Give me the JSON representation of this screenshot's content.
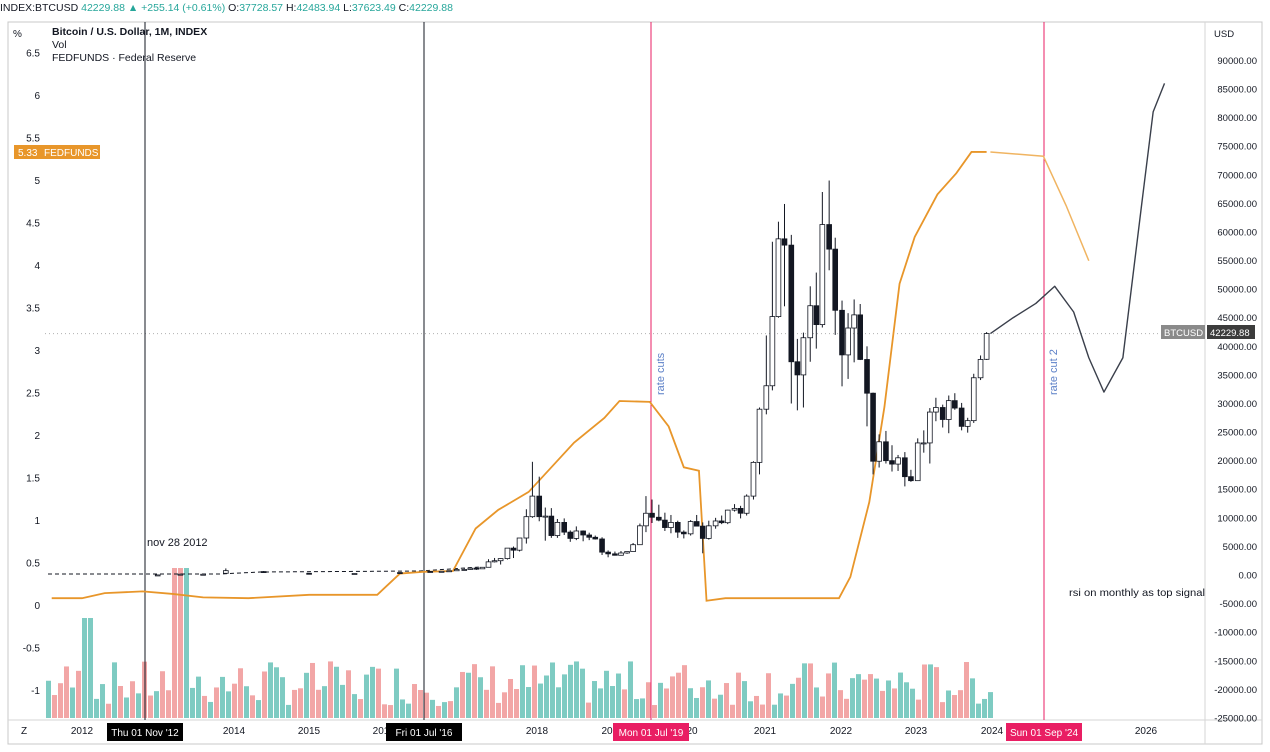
{
  "header": {
    "symbol": "INDEX:BTCUSD",
    "last": "42229.88",
    "change": "▲ +255.14 (+0.61%)",
    "open_label": "O:",
    "open": "37728.57",
    "high_label": "H:",
    "high": "42483.94",
    "low_label": "L:",
    "low": "37623.49",
    "close_label": "C:",
    "close": "42229.88"
  },
  "legend": {
    "title": "Bitcoin / U.S. Dollar, 1M, INDEX",
    "line2": "Vol",
    "line3": "FEDFUNDS · Federal Reserve"
  },
  "colors": {
    "up": "#26a69a",
    "down": "#ef5350",
    "fedfunds": "#e8962a",
    "marker": "#e91e63",
    "volume_up": "#7ecbc2",
    "volume_down": "#f2a6a6"
  },
  "chart_data": {
    "type": "candlestick",
    "left_axis": {
      "unit_label": "%",
      "ticks": [
        "6.5",
        "6",
        "5.5",
        "5",
        "4.5",
        "4",
        "3.5",
        "3",
        "2.5",
        "2",
        "1.5",
        "1",
        "0.5",
        "0",
        "-0.5",
        "-1"
      ]
    },
    "right_axis": {
      "unit_label": "USD",
      "ticks": [
        "90000.00",
        "85000.00",
        "80000.00",
        "75000.00",
        "70000.00",
        "65000.00",
        "60000.00",
        "55000.00",
        "50000.00",
        "45000.00",
        "40000.00",
        "35000.00",
        "30000.00",
        "25000.00",
        "20000.00",
        "15000.00",
        "10000.00",
        "5000.00",
        "0.00",
        "-5000.00",
        "-10000.00",
        "-15000.00",
        "-20000.00",
        "-25000.00"
      ]
    },
    "x_axis": {
      "ticks": [
        "2012",
        "2014",
        "2015",
        "201",
        "2018",
        "20",
        "20",
        "2021",
        "2022",
        "2023",
        "2024",
        "2026"
      ],
      "corner_label": "Z"
    },
    "fedfunds_badge": {
      "value": "5.33",
      "name": "FEDFUNDS"
    },
    "btc_badge": {
      "name": "BTCUSD",
      "value": "42229.88"
    },
    "btc_price_line": 42229.88,
    "vertical_markers": [
      {
        "label": "Thu 01 Nov '12",
        "style": "black"
      },
      {
        "label": "Fri 01 Jul '16",
        "style": "black"
      },
      {
        "label": "Mon 01 Jul '19",
        "style": "pink"
      },
      {
        "label": "Sun 01 Sep '24",
        "style": "pink"
      }
    ],
    "annotations": [
      {
        "text": "nov 28 2012"
      },
      {
        "text": "rate cuts"
      },
      {
        "text": "rate cut 2"
      },
      {
        "text": "rsi on monthly as top signal"
      }
    ],
    "fedfunds_series": [
      [
        2011.6,
        0.08
      ],
      [
        2012.0,
        0.08
      ],
      [
        2012.3,
        0.14
      ],
      [
        2012.8,
        0.16
      ],
      [
        2013.2,
        0.13
      ],
      [
        2013.6,
        0.09
      ],
      [
        2014.2,
        0.08
      ],
      [
        2015.0,
        0.12
      ],
      [
        2015.9,
        0.12
      ],
      [
        2016.2,
        0.37
      ],
      [
        2016.5,
        0.39
      ],
      [
        2016.9,
        0.4
      ],
      [
        2017.2,
        0.9
      ],
      [
        2017.5,
        1.12
      ],
      [
        2017.9,
        1.33
      ],
      [
        2018.2,
        1.62
      ],
      [
        2018.5,
        1.91
      ],
      [
        2018.9,
        2.2
      ],
      [
        2019.1,
        2.4
      ],
      [
        2019.5,
        2.39
      ],
      [
        2019.75,
        2.1
      ],
      [
        2019.95,
        1.62
      ],
      [
        2020.15,
        1.58
      ],
      [
        2020.25,
        0.05
      ],
      [
        2020.5,
        0.08
      ],
      [
        2021.0,
        0.08
      ],
      [
        2021.5,
        0.08
      ],
      [
        2022.0,
        0.08
      ],
      [
        2022.15,
        0.33
      ],
      [
        2022.4,
        1.21
      ],
      [
        2022.6,
        2.33
      ],
      [
        2022.8,
        3.78
      ],
      [
        2023.0,
        4.33
      ],
      [
        2023.3,
        4.83
      ],
      [
        2023.55,
        5.08
      ],
      [
        2023.75,
        5.33
      ],
      [
        2023.95,
        5.33
      ]
    ],
    "fedfunds_projection": [
      [
        2024.0,
        5.33
      ],
      [
        2024.7,
        5.28
      ],
      [
        2025.0,
        4.7
      ],
      [
        2025.3,
        4.05
      ]
    ],
    "btc_projection": [
      [
        2024.0,
        42229
      ],
      [
        2024.3,
        45000
      ],
      [
        2024.6,
        47500
      ],
      [
        2024.85,
        50500
      ],
      [
        2025.1,
        46000
      ],
      [
        2025.3,
        38000
      ],
      [
        2025.5,
        32000
      ],
      [
        2025.75,
        38000
      ],
      [
        2026.0,
        65000
      ],
      [
        2026.15,
        81000
      ],
      [
        2026.3,
        86000
      ]
    ],
    "btc_monthly": [
      [
        2013.0,
        13,
        14,
        12,
        13
      ],
      [
        2013.3,
        95,
        230,
        50,
        140
      ],
      [
        2013.6,
        120,
        200,
        70,
        130
      ],
      [
        2013.9,
        300,
        1150,
        300,
        760
      ],
      [
        2014.4,
        600,
        700,
        400,
        460
      ],
      [
        2015.0,
        300,
        350,
        200,
        240
      ],
      [
        2015.6,
        250,
        280,
        230,
        265
      ],
      [
        2016.2,
        430,
        450,
        400,
        420
      ],
      [
        2016.6,
        620,
        700,
        550,
        610
      ],
      [
        2016.75,
        610,
        650,
        600,
        640
      ],
      [
        2016.85,
        640,
        750,
        620,
        740
      ],
      [
        2016.95,
        740,
        970,
        740,
        960
      ],
      [
        2017.05,
        960,
        1180,
        780,
        970
      ],
      [
        2017.13,
        970,
        1230,
        920,
        1190
      ],
      [
        2017.21,
        1190,
        1290,
        890,
        1080
      ],
      [
        2017.29,
        1080,
        1380,
        1080,
        1350
      ],
      [
        2017.37,
        1350,
        2760,
        1350,
        2300
      ],
      [
        2017.45,
        2300,
        2980,
        2200,
        2500
      ],
      [
        2017.53,
        2500,
        2920,
        1830,
        2870
      ],
      [
        2017.62,
        2870,
        4700,
        2700,
        4700
      ],
      [
        2017.7,
        4700,
        4980,
        2970,
        4340
      ],
      [
        2017.78,
        4340,
        6470,
        4120,
        6470
      ],
      [
        2017.87,
        6470,
        11500,
        5500,
        10200
      ],
      [
        2017.95,
        10200,
        19800,
        10000,
        13800
      ],
      [
        2018.04,
        13800,
        17200,
        9400,
        10200
      ],
      [
        2018.12,
        10200,
        11800,
        6000,
        10300
      ],
      [
        2018.2,
        10300,
        11700,
        6500,
        6900
      ],
      [
        2018.28,
        6900,
        9800,
        6500,
        9200
      ],
      [
        2018.37,
        9200,
        9900,
        7000,
        7500
      ],
      [
        2018.45,
        7500,
        7800,
        5800,
        6400
      ],
      [
        2018.53,
        6400,
        8500,
        6100,
        7700
      ],
      [
        2018.62,
        7700,
        7800,
        5900,
        7000
      ],
      [
        2018.7,
        7000,
        7400,
        6100,
        6600
      ],
      [
        2018.78,
        6600,
        6900,
        6200,
        6300
      ],
      [
        2018.87,
        6300,
        6600,
        3500,
        4000
      ],
      [
        2018.95,
        4000,
        4300,
        3100,
        3700
      ],
      [
        2019.04,
        3700,
        4100,
        3400,
        3450
      ],
      [
        2019.12,
        3450,
        4200,
        3400,
        3850
      ],
      [
        2019.2,
        3850,
        4100,
        3700,
        4100
      ],
      [
        2019.28,
        4100,
        5600,
        4100,
        5300
      ],
      [
        2019.37,
        5300,
        9000,
        5300,
        8600
      ],
      [
        2019.45,
        8600,
        13800,
        7500,
        10800
      ],
      [
        2019.53,
        10800,
        13200,
        9100,
        10100
      ],
      [
        2019.62,
        10100,
        12300,
        9400,
        9600
      ],
      [
        2019.7,
        9600,
        10900,
        7700,
        8300
      ],
      [
        2019.78,
        8300,
        10500,
        7300,
        9200
      ],
      [
        2019.87,
        9200,
        9500,
        6500,
        7500
      ],
      [
        2019.95,
        7500,
        7800,
        6400,
        7200
      ],
      [
        2020.04,
        7200,
        9600,
        6900,
        9350
      ],
      [
        2020.12,
        9350,
        10500,
        8500,
        8550
      ],
      [
        2020.2,
        8550,
        9200,
        3800,
        6400
      ],
      [
        2020.28,
        6400,
        9500,
        6200,
        8600
      ],
      [
        2020.37,
        8600,
        10000,
        8100,
        9450
      ],
      [
        2020.45,
        9450,
        10400,
        8900,
        9150
      ],
      [
        2020.53,
        9150,
        11400,
        8900,
        11350
      ],
      [
        2020.62,
        11350,
        12400,
        11100,
        11650
      ],
      [
        2020.7,
        11650,
        12100,
        9900,
        10800
      ],
      [
        2020.78,
        10800,
        14100,
        10400,
        13800
      ],
      [
        2020.87,
        13800,
        19900,
        13200,
        19700
      ],
      [
        2020.95,
        19700,
        29300,
        17600,
        29000
      ],
      [
        2021.04,
        29000,
        41900,
        28100,
        33100
      ],
      [
        2021.12,
        33100,
        58300,
        32300,
        45200
      ],
      [
        2021.2,
        45200,
        61800,
        45000,
        58800
      ],
      [
        2021.28,
        58800,
        64900,
        47000,
        57700
      ],
      [
        2021.37,
        57700,
        59500,
        30000,
        37300
      ],
      [
        2021.45,
        37300,
        41300,
        28800,
        35000
      ],
      [
        2021.53,
        35000,
        42400,
        29300,
        41500
      ],
      [
        2021.62,
        41500,
        50500,
        37300,
        47100
      ],
      [
        2021.7,
        47100,
        52900,
        39600,
        43800
      ],
      [
        2021.78,
        43800,
        67000,
        43300,
        61300
      ],
      [
        2021.87,
        61300,
        69000,
        53300,
        57000
      ],
      [
        2021.95,
        57000,
        59000,
        42000,
        46300
      ],
      [
        2022.04,
        46300,
        48000,
        33000,
        38500
      ],
      [
        2022.12,
        38500,
        45800,
        34300,
        43200
      ],
      [
        2022.2,
        43200,
        48200,
        37200,
        45500
      ],
      [
        2022.28,
        45500,
        47400,
        37600,
        37700
      ],
      [
        2022.37,
        37700,
        40000,
        26000,
        31800
      ],
      [
        2022.45,
        31800,
        31900,
        17600,
        19900
      ],
      [
        2022.53,
        19900,
        24600,
        18800,
        23300
      ],
      [
        2022.62,
        23300,
        25200,
        19500,
        20000
      ],
      [
        2022.7,
        20000,
        22700,
        18100,
        19400
      ],
      [
        2022.78,
        19400,
        21000,
        18200,
        20500
      ],
      [
        2022.87,
        20500,
        21500,
        15500,
        17200
      ],
      [
        2022.95,
        17200,
        18400,
        16300,
        16500
      ],
      [
        2023.04,
        16500,
        23900,
        16500,
        23100
      ],
      [
        2023.12,
        23100,
        25300,
        21400,
        23100
      ],
      [
        2023.2,
        23100,
        29200,
        19500,
        28500
      ],
      [
        2023.28,
        28500,
        31000,
        26900,
        29300
      ],
      [
        2023.37,
        29300,
        29800,
        25800,
        27200
      ],
      [
        2023.45,
        27200,
        31400,
        24800,
        30500
      ],
      [
        2023.53,
        30500,
        31800,
        28900,
        29200
      ],
      [
        2023.62,
        29200,
        30100,
        25300,
        26000
      ],
      [
        2023.7,
        26000,
        27500,
        24900,
        27000
      ],
      [
        2023.78,
        27000,
        35200,
        26600,
        34500
      ],
      [
        2023.87,
        34500,
        38400,
        34100,
        37700
      ],
      [
        2023.95,
        37729,
        42484,
        37623,
        42230
      ]
    ]
  }
}
